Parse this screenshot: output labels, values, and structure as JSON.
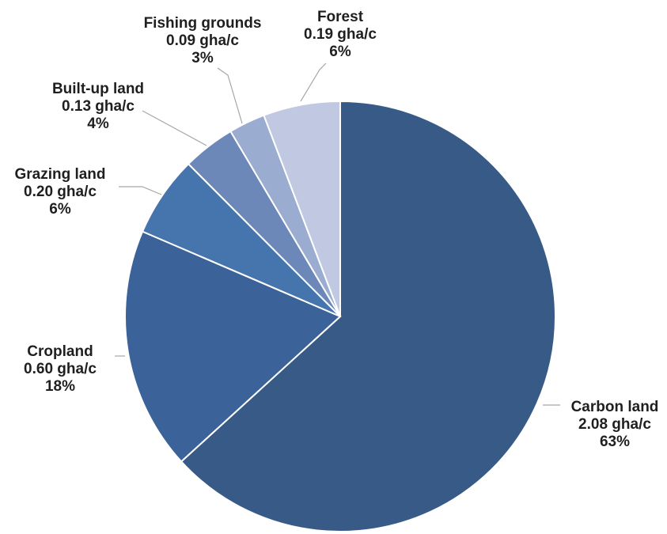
{
  "chart_data": {
    "type": "pie",
    "title": "",
    "slices": [
      {
        "name": "Carbon land",
        "value": 2.08,
        "value_label": "2.08 gha/c",
        "percent_label": "63%",
        "color": "#385a87"
      },
      {
        "name": "Cropland",
        "value": 0.6,
        "value_label": "0.60 gha/c",
        "percent_label": "18%",
        "color": "#3c6399"
      },
      {
        "name": "Grazing land",
        "value": 0.2,
        "value_label": "0.20 gha/c",
        "percent_label": "6%",
        "color": "#4675ad"
      },
      {
        "name": "Built-up land",
        "value": 0.13,
        "value_label": "0.13 gha/c",
        "percent_label": "4%",
        "color": "#6b88b9"
      },
      {
        "name": "Fishing grounds",
        "value": 0.09,
        "value_label": "0.09 gha/c",
        "percent_label": "3%",
        "color": "#9aaccf"
      },
      {
        "name": "Forest",
        "value": 0.19,
        "value_label": "0.19 gha/c",
        "percent_label": "6%",
        "color": "#c1c9e2"
      }
    ],
    "start_angle": "12 o'clock",
    "direction": "clockwise",
    "legend": "none",
    "labels": "outside with leader lines"
  }
}
